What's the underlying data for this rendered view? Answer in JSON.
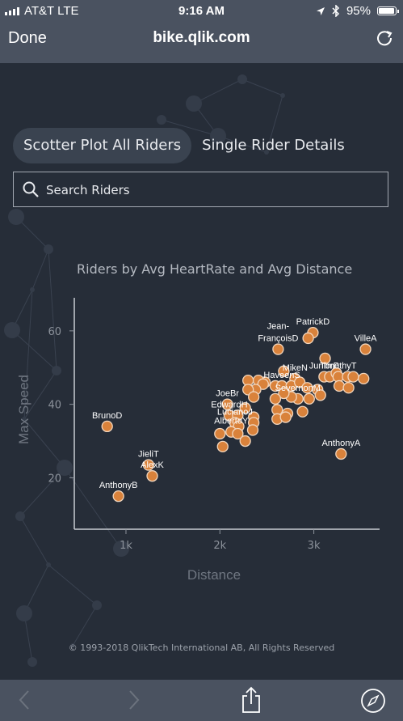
{
  "status_bar": {
    "carrier": "AT&T  LTE",
    "time": "9:16 AM",
    "battery": "95%",
    "battery_level": 0.95
  },
  "browser": {
    "done_label": "Done",
    "url": "bike.qlik.com"
  },
  "tabs": [
    {
      "label": "Scotter Plot All Riders",
      "active": true
    },
    {
      "label": "Single Rider Details",
      "active": false
    }
  ],
  "search": {
    "placeholder": "Search Riders"
  },
  "copyright": "© 1993-2018 QlikTech International AB, All Rights Reserved",
  "colors": {
    "background": "#262d38",
    "bar": "#4a5260",
    "point": "#d9823b",
    "point_stroke": "#f2d6bd"
  },
  "chart_data": {
    "type": "scatter",
    "title": "Riders by Avg HeartRate and Avg Distance",
    "xlabel": "Distance",
    "ylabel": "Max Speed",
    "xlim": [
      450,
      3700
    ],
    "ylim": [
      6,
      69
    ],
    "xticks": [
      {
        "v": 1000,
        "label": "1k"
      },
      {
        "v": 2000,
        "label": "2k"
      },
      {
        "v": 3000,
        "label": "3k"
      }
    ],
    "yticks": [
      {
        "v": 20,
        "label": "20"
      },
      {
        "v": 40,
        "label": "40"
      },
      {
        "v": 60,
        "label": "60"
      }
    ],
    "points": [
      {
        "x": 2990,
        "y": 59.5,
        "label": "PatrickD"
      },
      {
        "x": 2940,
        "y": 58,
        "label": ""
      },
      {
        "x": 2620,
        "y": 55,
        "label": "Jean-\nFrançoisD"
      },
      {
        "x": 3550,
        "y": 55,
        "label": "VilleA"
      },
      {
        "x": 3120,
        "y": 52.5,
        "label": ""
      },
      {
        "x": 3110,
        "y": 47.5,
        "label": "JuniorP"
      },
      {
        "x": 3170,
        "y": 47.5,
        "label": ""
      },
      {
        "x": 3240,
        "y": 48.5,
        "label": ""
      },
      {
        "x": 3260,
        "y": 47.5,
        "label": "TimothyT"
      },
      {
        "x": 3360,
        "y": 47.5,
        "label": ""
      },
      {
        "x": 3420,
        "y": 47.5,
        "label": ""
      },
      {
        "x": 3530,
        "y": 47,
        "label": ""
      },
      {
        "x": 3270,
        "y": 45,
        "label": ""
      },
      {
        "x": 3370,
        "y": 44.5,
        "label": ""
      },
      {
        "x": 2680,
        "y": 49,
        "label": ""
      },
      {
        "x": 2800,
        "y": 47,
        "label": "MikeN"
      },
      {
        "x": 2590,
        "y": 45,
        "label": ""
      },
      {
        "x": 2660,
        "y": 45,
        "label": "HaveenS"
      },
      {
        "x": 2760,
        "y": 45,
        "label": ""
      },
      {
        "x": 2850,
        "y": 46,
        "label": ""
      },
      {
        "x": 2930,
        "y": 44.5,
        "label": ""
      },
      {
        "x": 3040,
        "y": 44,
        "label": ""
      },
      {
        "x": 3070,
        "y": 42.5,
        "label": ""
      },
      {
        "x": 2950,
        "y": 41.5,
        "label": ""
      },
      {
        "x": 2830,
        "y": 41.5,
        "label": "SevernonM"
      },
      {
        "x": 2760,
        "y": 42,
        "label": ""
      },
      {
        "x": 2680,
        "y": 43,
        "label": ""
      },
      {
        "x": 2590,
        "y": 41.5,
        "label": ""
      },
      {
        "x": 2480,
        "y": 46,
        "label": ""
      },
      {
        "x": 2410,
        "y": 46.5,
        "label": ""
      },
      {
        "x": 2300,
        "y": 46.5,
        "label": ""
      },
      {
        "x": 2460,
        "y": 45.5,
        "label": ""
      },
      {
        "x": 2380,
        "y": 44,
        "label": ""
      },
      {
        "x": 2300,
        "y": 44,
        "label": ""
      },
      {
        "x": 2360,
        "y": 42,
        "label": ""
      },
      {
        "x": 2610,
        "y": 38.5,
        "label": ""
      },
      {
        "x": 2720,
        "y": 37.5,
        "label": ""
      },
      {
        "x": 2880,
        "y": 38,
        "label": ""
      },
      {
        "x": 2610,
        "y": 36,
        "label": ""
      },
      {
        "x": 2700,
        "y": 36.5,
        "label": ""
      },
      {
        "x": 2080,
        "y": 40,
        "label": "JoeBr"
      },
      {
        "x": 2270,
        "y": 39,
        "label": ""
      },
      {
        "x": 2100,
        "y": 37,
        "label": "EdwardH"
      },
      {
        "x": 2190,
        "y": 37,
        "label": ""
      },
      {
        "x": 2160,
        "y": 35,
        "label": "LucianoJ"
      },
      {
        "x": 2200,
        "y": 34,
        "label": ""
      },
      {
        "x": 2360,
        "y": 36.5,
        "label": ""
      },
      {
        "x": 2360,
        "y": 35,
        "label": ""
      },
      {
        "x": 2120,
        "y": 32.5,
        "label": "AlbertoY"
      },
      {
        "x": 2190,
        "y": 32,
        "label": ""
      },
      {
        "x": 2000,
        "y": 32,
        "label": ""
      },
      {
        "x": 2350,
        "y": 33,
        "label": ""
      },
      {
        "x": 2270,
        "y": 30,
        "label": ""
      },
      {
        "x": 2030,
        "y": 28.5,
        "label": ""
      },
      {
        "x": 800,
        "y": 34,
        "label": "BrunoD"
      },
      {
        "x": 3290,
        "y": 26.5,
        "label": "AnthonyA"
      },
      {
        "x": 1240,
        "y": 23.5,
        "label": "JieliT"
      },
      {
        "x": 1280,
        "y": 20.5,
        "label": "AlexK"
      },
      {
        "x": 920,
        "y": 15,
        "label": "AnthonyB"
      }
    ]
  }
}
